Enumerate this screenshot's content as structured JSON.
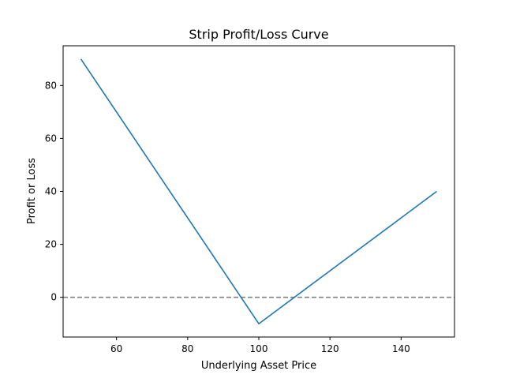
{
  "chart_data": {
    "type": "line",
    "title": "Strip Profit/Loss Curve",
    "xlabel": "Underlying Asset Price",
    "ylabel": "Profit or Loss",
    "xlim": [
      45,
      155
    ],
    "ylim": [
      -15,
      95
    ],
    "xticks": [
      60,
      80,
      100,
      120,
      140
    ],
    "yticks": [
      0,
      20,
      40,
      60,
      80
    ],
    "grid": false,
    "series": [
      {
        "x": [
          50,
          100,
          150
        ],
        "values": [
          90,
          -10,
          40
        ],
        "color": "#1f77b4"
      }
    ],
    "reference_lines": [
      {
        "orientation": "horizontal",
        "y": 0,
        "style": "dashed",
        "color": "#808080"
      }
    ]
  }
}
